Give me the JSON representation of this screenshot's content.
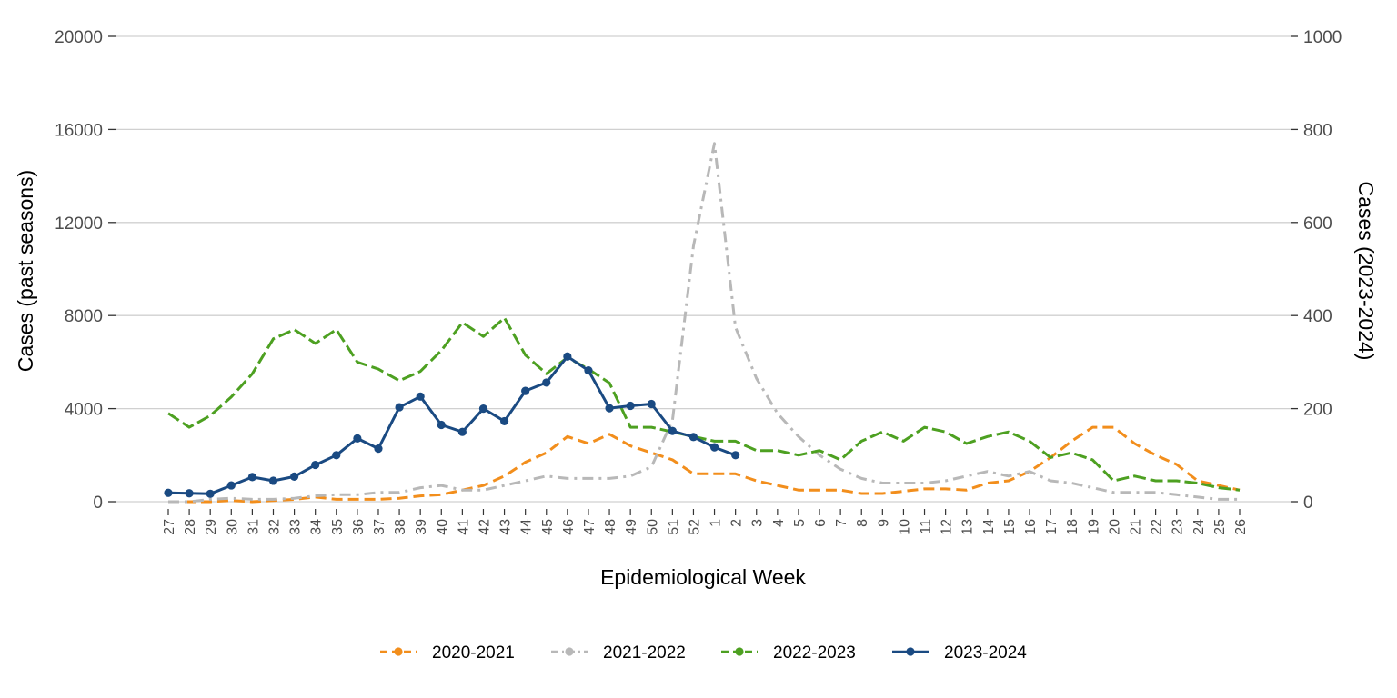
{
  "chart_data": {
    "type": "line",
    "xlabel": "Epidemiological Week",
    "ylabel_left": "Cases (past seasons)",
    "ylabel_right": "Cases (2023-2024)",
    "left_ticks": [
      "0",
      "4000",
      "8000",
      "12000",
      "16000",
      "20000"
    ],
    "right_ticks": [
      "0",
      "200",
      "400",
      "600",
      "800",
      "1000"
    ],
    "y_left_range": [
      0,
      20000
    ],
    "y_right_range": [
      0,
      1000
    ],
    "grid": "horizontal",
    "legend_position": "bottom",
    "weeks": [
      "27",
      "28",
      "29",
      "30",
      "31",
      "32",
      "33",
      "34",
      "35",
      "36",
      "37",
      "38",
      "39",
      "40",
      "41",
      "42",
      "43",
      "44",
      "45",
      "46",
      "47",
      "48",
      "49",
      "50",
      "51",
      "52",
      "1",
      "2",
      "3",
      "4",
      "5",
      "6",
      "7",
      "8",
      "9",
      "10",
      "11",
      "12",
      "13",
      "14",
      "15",
      "16",
      "17",
      "18",
      "19",
      "20",
      "21",
      "22",
      "23",
      "24",
      "25",
      "26"
    ],
    "series": [
      {
        "name": "2020-2021",
        "axis": "left",
        "color": "#F28E1C",
        "dash": "dashed",
        "values": [
          0,
          0,
          0,
          50,
          0,
          50,
          100,
          200,
          100,
          100,
          100,
          150,
          250,
          300,
          500,
          700,
          1100,
          1700,
          2100,
          2800,
          2500,
          2900,
          2400,
          2100,
          1800,
          1200,
          1200,
          1200,
          900,
          700,
          500,
          500,
          500,
          350,
          350,
          450,
          550,
          550,
          500,
          800,
          900,
          1300,
          1900,
          2600,
          3200,
          3200,
          2500,
          2000,
          1600,
          900,
          700,
          500
        ]
      },
      {
        "name": "2021-2022",
        "axis": "left",
        "color": "#B8B8B8",
        "dash": "dashdot",
        "values": [
          0,
          0,
          100,
          150,
          100,
          100,
          150,
          250,
          300,
          300,
          400,
          400,
          600,
          700,
          500,
          500,
          700,
          900,
          1100,
          1000,
          1000,
          1000,
          1100,
          1500,
          3500,
          11000,
          15400,
          7500,
          5300,
          3800,
          2800,
          2000,
          1400,
          1000,
          800,
          800,
          800,
          900,
          1100,
          1300,
          1100,
          1300,
          900,
          800,
          600,
          400,
          400,
          400,
          300,
          200,
          100,
          100
        ]
      },
      {
        "name": "2022-2023",
        "axis": "left",
        "color": "#4DA021",
        "dash": "longdash",
        "values": [
          3800,
          3200,
          3700,
          4500,
          5500,
          7000,
          7400,
          6800,
          7400,
          6000,
          5700,
          5200,
          5600,
          6500,
          7700,
          7100,
          7900,
          6300,
          5500,
          6200,
          5700,
          5100,
          3200,
          3200,
          3000,
          2800,
          2600,
          2600,
          2200,
          2200,
          2000,
          2200,
          1800,
          2600,
          3000,
          2600,
          3200,
          3000,
          2500,
          2800,
          3000,
          2600,
          1900,
          2100,
          1800,
          900,
          1100,
          900,
          900,
          800,
          600,
          500
        ]
      },
      {
        "name": "2023-2024",
        "axis": "right",
        "color": "#1A4A82",
        "dash": "solid",
        "values": [
          19,
          18,
          17,
          35,
          53,
          45,
          54,
          79,
          100,
          136,
          114,
          203,
          226,
          165,
          150,
          200,
          173,
          238,
          256,
          312,
          282,
          201,
          206,
          210,
          152,
          139,
          117,
          100
        ]
      }
    ]
  }
}
